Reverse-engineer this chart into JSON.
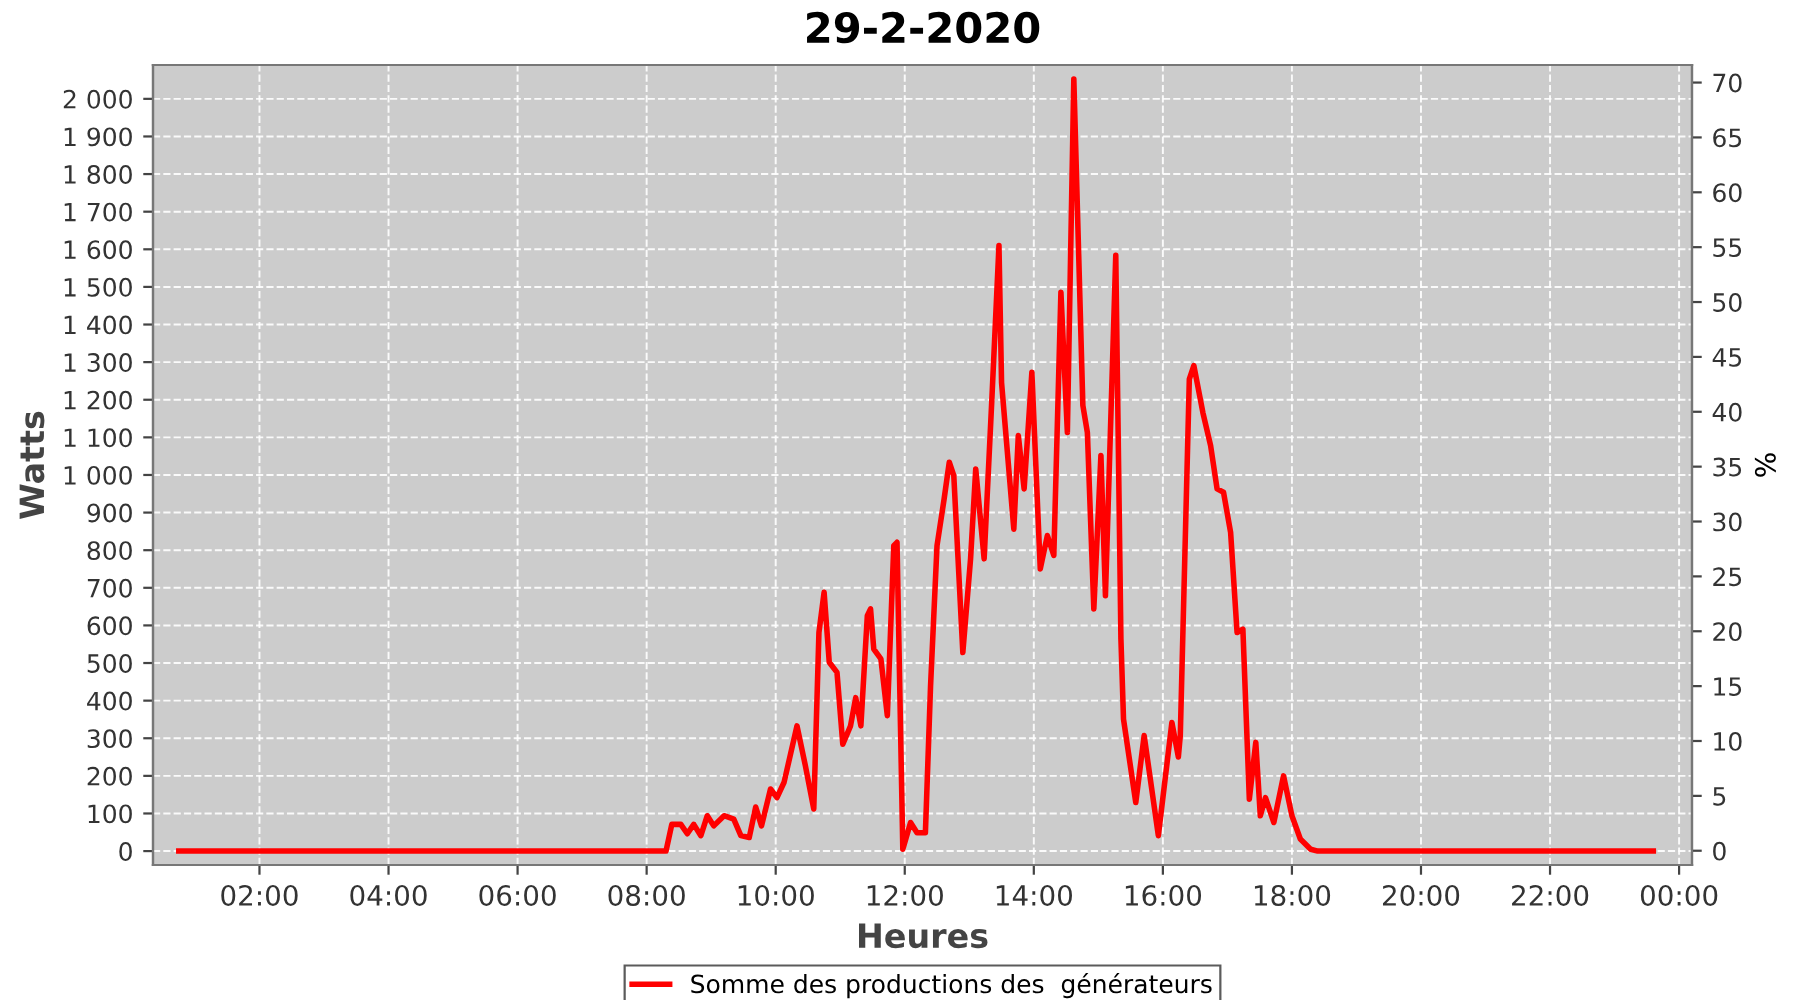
{
  "chart_data": {
    "type": "line",
    "title": "29-2-2020",
    "xlabel": "Heures",
    "ylabel": "Watts",
    "y2label": "%",
    "xlim": [
      0.35,
      24.2
    ],
    "xticks": [
      {
        "value": 2,
        "label": "02:00"
      },
      {
        "value": 4,
        "label": "04:00"
      },
      {
        "value": 6,
        "label": "06:00"
      },
      {
        "value": 8,
        "label": "08:00"
      },
      {
        "value": 10,
        "label": "10:00"
      },
      {
        "value": 12,
        "label": "12:00"
      },
      {
        "value": 14,
        "label": "14:00"
      },
      {
        "value": 16,
        "label": "16:00"
      },
      {
        "value": 18,
        "label": "18:00"
      },
      {
        "value": 20,
        "label": "20:00"
      },
      {
        "value": 22,
        "label": "22:00"
      },
      {
        "value": 24,
        "label": "00:00"
      }
    ],
    "ylim": [
      -37,
      2090
    ],
    "yticks": [
      0,
      100,
      200,
      300,
      400,
      500,
      600,
      700,
      800,
      900,
      {
        "value": 1000,
        "label": "1 000"
      },
      {
        "value": 1100,
        "label": "1 100"
      },
      {
        "value": 1200,
        "label": "1 200"
      },
      {
        "value": 1300,
        "label": "1 300"
      },
      {
        "value": 1400,
        "label": "1 400"
      },
      {
        "value": 1500,
        "label": "1 500"
      },
      {
        "value": 1600,
        "label": "1 600"
      },
      {
        "value": 1700,
        "label": "1 700"
      },
      {
        "value": 1800,
        "label": "1 800"
      },
      {
        "value": 1900,
        "label": "1 900"
      },
      {
        "value": 2000,
        "label": "2 000"
      }
    ],
    "y2lim": [
      -1.3,
      71.6
    ],
    "y2ticks": [
      0,
      5,
      10,
      15,
      20,
      25,
      30,
      35,
      40,
      45,
      50,
      55,
      60,
      65,
      70
    ],
    "grid": true,
    "legend": "bottom",
    "line_style": "solid",
    "marker": "none",
    "series": [
      {
        "name": "Somme des productions des  générateurs",
        "color": "#ff0000",
        "x": [
          0.75,
          8.3,
          8.39,
          8.53,
          8.63,
          8.73,
          8.84,
          8.94,
          9.04,
          9.2,
          9.35,
          9.46,
          9.59,
          9.69,
          9.78,
          9.92,
          10.02,
          10.13,
          10.33,
          10.46,
          10.59,
          10.67,
          10.75,
          10.83,
          10.95,
          11.04,
          11.16,
          11.24,
          11.32,
          11.42,
          11.47,
          11.52,
          11.63,
          11.73,
          11.83,
          11.88,
          11.97,
          12.09,
          12.19,
          12.32,
          12.4,
          12.5,
          12.61,
          12.69,
          12.76,
          12.9,
          13.02,
          13.1,
          13.23,
          13.35,
          13.46,
          13.5,
          13.69,
          13.76,
          13.85,
          13.97,
          14.1,
          14.21,
          14.31,
          14.42,
          14.52,
          14.62,
          14.76,
          14.83,
          14.93,
          15.04,
          15.11,
          15.27,
          15.35,
          15.39,
          15.58,
          15.71,
          15.93,
          16.14,
          16.24,
          16.27,
          16.41,
          16.48,
          16.62,
          16.74,
          16.84,
          16.94,
          17.05,
          17.15,
          17.24,
          17.34,
          17.44,
          17.51,
          17.59,
          17.72,
          17.87,
          18.0,
          18.13,
          18.29,
          18.4,
          23.6
        ],
        "values": [
          0,
          0,
          71,
          71,
          46,
          71,
          41,
          94,
          67,
          94,
          85,
          41,
          36,
          117,
          67,
          165,
          142,
          183,
          333,
          227,
          112,
          581,
          688,
          502,
          475,
          284,
          333,
          408,
          333,
          626,
          644,
          537,
          511,
          360,
          812,
          821,
          5,
          76,
          49,
          49,
          440,
          812,
          936,
          1034,
          998,
          528,
          777,
          1016,
          777,
          1202,
          1610,
          1246,
          856,
          1105,
          963,
          1273,
          750,
          839,
          786,
          1486,
          1113,
          2053,
          1185,
          1113,
          644,
          1052,
          679,
          1584,
          564,
          351,
          129,
          307,
          41,
          342,
          250,
          307,
          1255,
          1291,
          1166,
          1078,
          963,
          954,
          847,
          581,
          590,
          138,
          289,
          94,
          142,
          76,
          200,
          94,
          32,
          5,
          0,
          0
        ]
      }
    ]
  }
}
